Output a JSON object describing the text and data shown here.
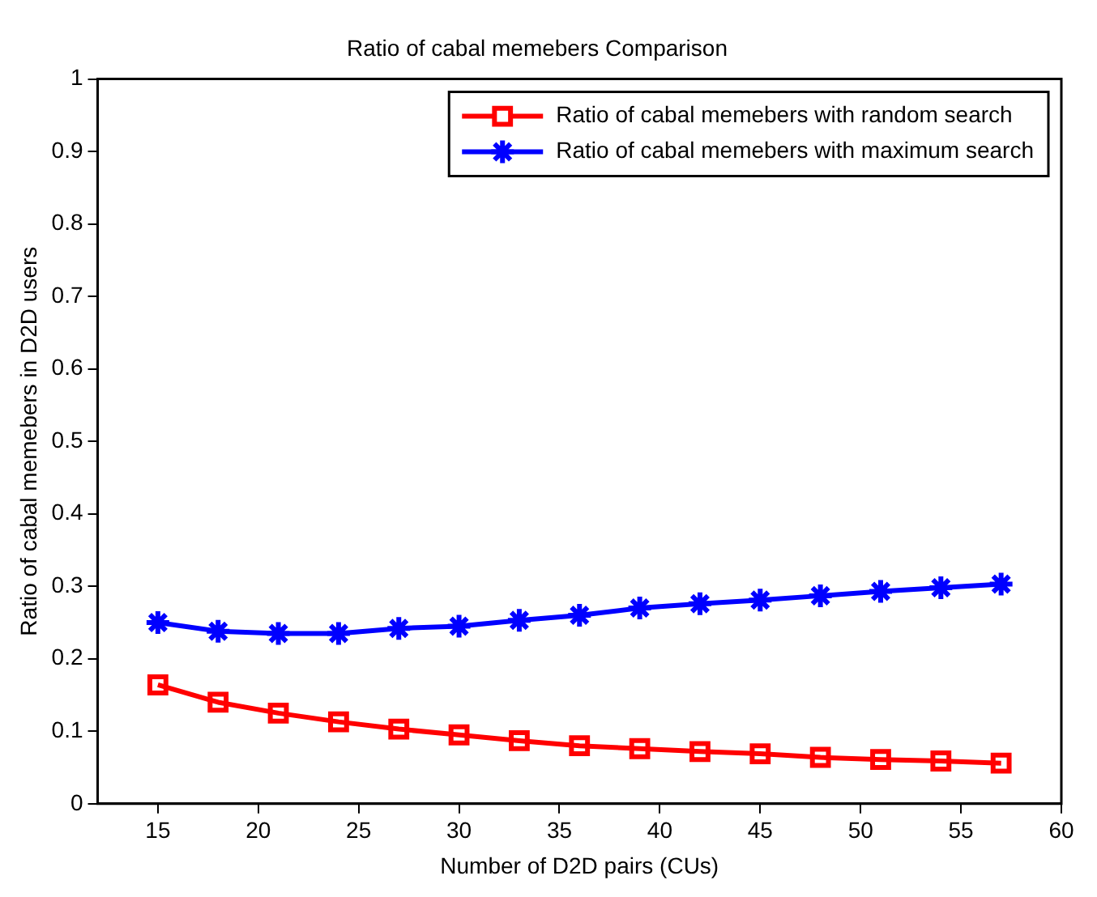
{
  "chart_data": {
    "type": "line",
    "title": "Ratio of cabal memebers Comparison",
    "xlabel": "Number of D2D pairs (CUs)",
    "ylabel": "Ratio of cabal memebers in D2D users",
    "x": [
      15,
      18,
      21,
      24,
      27,
      30,
      33,
      36,
      39,
      42,
      45,
      48,
      51,
      54,
      57
    ],
    "series": [
      {
        "name": "Ratio of cabal memebers with random search",
        "color": "#ff0000",
        "marker": "square",
        "values": [
          0.164,
          0.14,
          0.125,
          0.113,
          0.103,
          0.095,
          0.087,
          0.08,
          0.076,
          0.072,
          0.069,
          0.064,
          0.061,
          0.059,
          0.056
        ]
      },
      {
        "name": "Ratio of cabal memebers with maximum search",
        "color": "#0000ff",
        "marker": "cross",
        "values": [
          0.25,
          0.238,
          0.235,
          0.235,
          0.242,
          0.245,
          0.253,
          0.26,
          0.27,
          0.276,
          0.281,
          0.287,
          0.293,
          0.298,
          0.303
        ]
      }
    ],
    "xlim": [
      12,
      60
    ],
    "xticks": [
      15,
      20,
      25,
      30,
      35,
      40,
      45,
      50,
      55,
      60
    ],
    "ylim": [
      0,
      1
    ],
    "yticks": [
      0,
      0.1,
      0.2,
      0.3,
      0.4,
      0.5,
      0.6,
      0.7,
      0.8,
      0.9,
      1
    ],
    "grid": false,
    "legend": "top right"
  }
}
